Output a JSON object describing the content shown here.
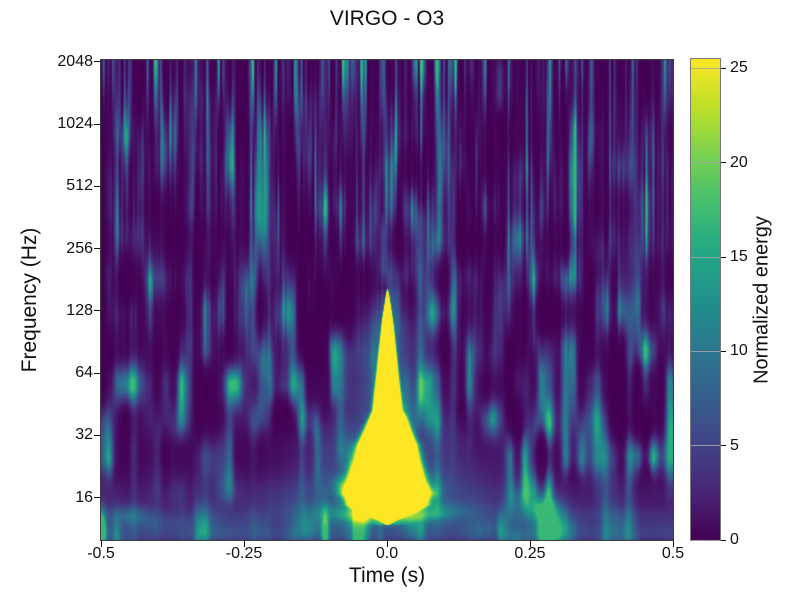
{
  "figure": {
    "background_color": "#ffffff",
    "text_color": "#111111"
  },
  "chart_data": {
    "type": "heatmap",
    "subtype": "constant-q spectrogram",
    "title": "VIRGO - O3",
    "xlabel": "Time (s)",
    "ylabel": "Frequency (Hz)",
    "x_range_s": [
      -0.5,
      0.5
    ],
    "x_ticks": [
      {
        "value": -0.5,
        "label": "-0.5"
      },
      {
        "value": -0.25,
        "label": "-0.25"
      },
      {
        "value": 0.0,
        "label": "0.0"
      },
      {
        "value": 0.25,
        "label": "0.25"
      },
      {
        "value": 0.5,
        "label": "0.5"
      }
    ],
    "y_scale": "log2",
    "y_range_hz": [
      10,
      2090
    ],
    "y_ticks": [
      {
        "value": 16,
        "label": "16"
      },
      {
        "value": 32,
        "label": "32"
      },
      {
        "value": 64,
        "label": "64"
      },
      {
        "value": 128,
        "label": "128"
      },
      {
        "value": 256,
        "label": "256"
      },
      {
        "value": 512,
        "label": "512"
      },
      {
        "value": 1024,
        "label": "1024"
      },
      {
        "value": 2048,
        "label": "2048"
      }
    ],
    "colorbar": {
      "label": "Normalized energy",
      "range": [
        0,
        25.5
      ],
      "ticks": [
        {
          "value": 0,
          "label": "0"
        },
        {
          "value": 5,
          "label": "5"
        },
        {
          "value": 10,
          "label": "10"
        },
        {
          "value": 15,
          "label": "15"
        },
        {
          "value": 20,
          "label": "20"
        },
        {
          "value": 25,
          "label": "25"
        }
      ],
      "colormap": "viridis",
      "colormap_stops": [
        "#440154",
        "#482475",
        "#414487",
        "#355f8d",
        "#2a788e",
        "#21918c",
        "#22a884",
        "#44bf70",
        "#7ad151",
        "#bddf26",
        "#fde725"
      ]
    },
    "burst": {
      "t_center_s": 0.0,
      "f_extent_hz": [
        12,
        170
      ],
      "peak_energy": "saturated, >= 25 (colorbar max)",
      "profile_f_hz": [
        171,
        153,
        116,
        83,
        59,
        42.5,
        34,
        29,
        24.4,
        19.5,
        16.9,
        14.8,
        13.5,
        12.5,
        11.8
      ],
      "profile_half_width_s": [
        0,
        0.0035,
        0.0088,
        0.014,
        0.019,
        0.0245,
        0.0385,
        0.049,
        0.054,
        0.063,
        0.0718,
        0.063,
        0.0385,
        0.014,
        0
      ]
    },
    "background_noise": {
      "description": "Low-energy noise floor: thin vertical streaks at high frequencies, broad blobs and horizontal banding at low frequencies",
      "typical_energy_range": [
        0,
        12
      ]
    }
  }
}
